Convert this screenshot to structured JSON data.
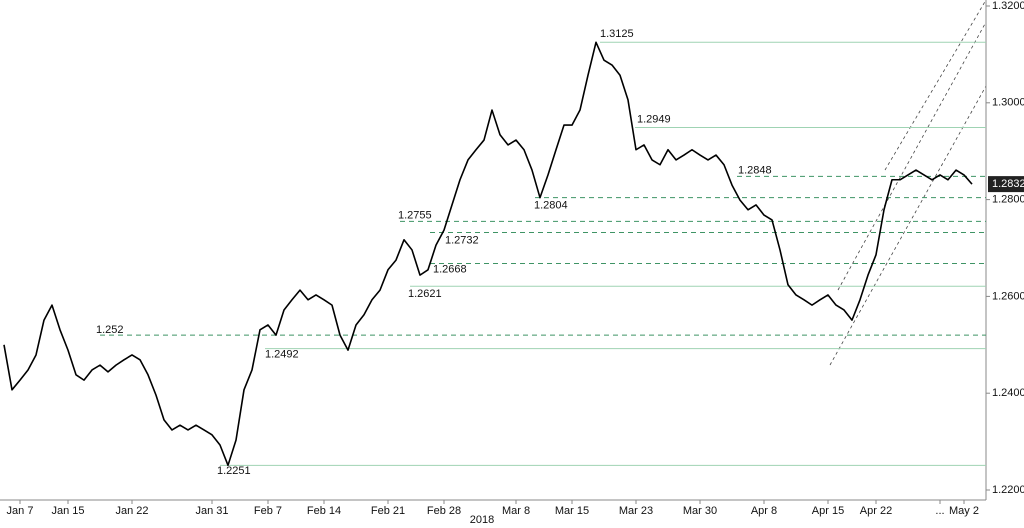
{
  "chart_data": {
    "type": "line",
    "xlabel": "2018",
    "color": "#000000",
    "categories": [
      null,
      null,
      "Jan 7",
      null,
      null,
      null,
      null,
      null,
      "Jan 15",
      null,
      null,
      null,
      null,
      null,
      null,
      null,
      "Jan 22",
      null,
      null,
      null,
      null,
      null,
      null,
      null,
      null,
      null,
      "Jan 31",
      null,
      null,
      null,
      null,
      null,
      null,
      "Feb 7",
      null,
      null,
      null,
      null,
      null,
      null,
      "Feb 14",
      null,
      null,
      null,
      null,
      null,
      null,
      null,
      "Feb 21",
      null,
      null,
      null,
      null,
      null,
      null,
      "Feb 28",
      null,
      null,
      null,
      null,
      null,
      null,
      null,
      null,
      "Mar 8",
      null,
      null,
      null,
      null,
      null,
      null,
      "Mar 15",
      null,
      null,
      null,
      null,
      null,
      null,
      null,
      "Mar 23",
      null,
      null,
      null,
      null,
      null,
      null,
      null,
      "Mar 30",
      null,
      null,
      null,
      null,
      null,
      null,
      null,
      "Apr 8",
      null,
      null,
      null,
      null,
      null,
      null,
      null,
      "Apr 15",
      null,
      null,
      null,
      null,
      null,
      "Apr 22",
      null,
      null,
      null,
      null,
      null,
      null,
      null,
      "...",
      null,
      null,
      "May 2",
      null
    ],
    "values": [
      1.25,
      1.2407,
      1.2427,
      1.2448,
      1.2479,
      1.2551,
      1.2582,
      1.2531,
      1.2489,
      1.2438,
      1.2427,
      1.2448,
      1.2458,
      1.2444,
      1.2458,
      1.2469,
      1.2479,
      1.2469,
      1.2438,
      1.2396,
      1.2345,
      1.2324,
      1.2334,
      1.2324,
      1.2334,
      1.2324,
      1.2314,
      1.2293,
      1.2251,
      1.2303,
      1.2407,
      1.2448,
      1.2531,
      1.2541,
      1.252,
      1.2572,
      1.2593,
      1.2613,
      1.2593,
      1.2603,
      1.2593,
      1.2582,
      1.252,
      1.2489,
      1.2541,
      1.2562,
      1.2593,
      1.2613,
      1.2655,
      1.2675,
      1.2717,
      1.2696,
      1.2644,
      1.2655,
      1.2706,
      1.2737,
      1.2789,
      1.2841,
      1.2882,
      1.2903,
      1.2923,
      1.2985,
      1.2934,
      1.2913,
      1.2923,
      1.2903,
      1.2861,
      1.2804,
      1.2851,
      1.2903,
      1.2954,
      1.2954,
      1.2985,
      1.3057,
      1.3125,
      1.3088,
      1.3078,
      1.3057,
      1.3006,
      1.2903,
      1.2913,
      1.2882,
      1.2872,
      1.2903,
      1.2882,
      1.2892,
      1.2903,
      1.2892,
      1.2882,
      1.2892,
      1.2872,
      1.283,
      1.2799,
      1.2779,
      1.2789,
      1.2768,
      1.2758,
      1.2696,
      1.2624,
      1.2603,
      1.2593,
      1.2582,
      1.2593,
      1.2603,
      1.2582,
      1.2572,
      1.2551,
      1.2593,
      1.2644,
      1.2686,
      1.2779,
      1.2841,
      1.2841,
      1.2851,
      1.2861,
      1.2851,
      1.2841,
      1.2851,
      1.2841,
      1.2861,
      1.2851,
      1.2832
    ],
    "ylim": [
      1.22,
      1.32
    ],
    "yticks": [
      {
        "value": 1.22,
        "label": "1.2200"
      },
      {
        "value": 1.24,
        "label": "1.2400"
      },
      {
        "value": 1.26,
        "label": "1.2600"
      },
      {
        "value": 1.28,
        "label": "1.2800"
      },
      {
        "value": 1.3,
        "label": "1.3000"
      },
      {
        "value": 1.32,
        "label": "1.3200"
      }
    ],
    "levels": [
      {
        "value": 1.3125,
        "style": "solid"
      },
      {
        "value": 1.2949,
        "style": "solid"
      },
      {
        "value": 1.2848,
        "style": "dashed"
      },
      {
        "value": 1.2804,
        "style": "dashed"
      },
      {
        "value": 1.2755,
        "style": "dashed"
      },
      {
        "value": 1.2732,
        "style": "dashed"
      },
      {
        "value": 1.2668,
        "style": "dashed"
      },
      {
        "value": 1.2621,
        "style": "solid"
      },
      {
        "value": 1.252,
        "style": "dashed"
      },
      {
        "value": 1.2492,
        "style": "solid"
      },
      {
        "value": 1.2251,
        "style": "solid"
      }
    ]
  }
}
